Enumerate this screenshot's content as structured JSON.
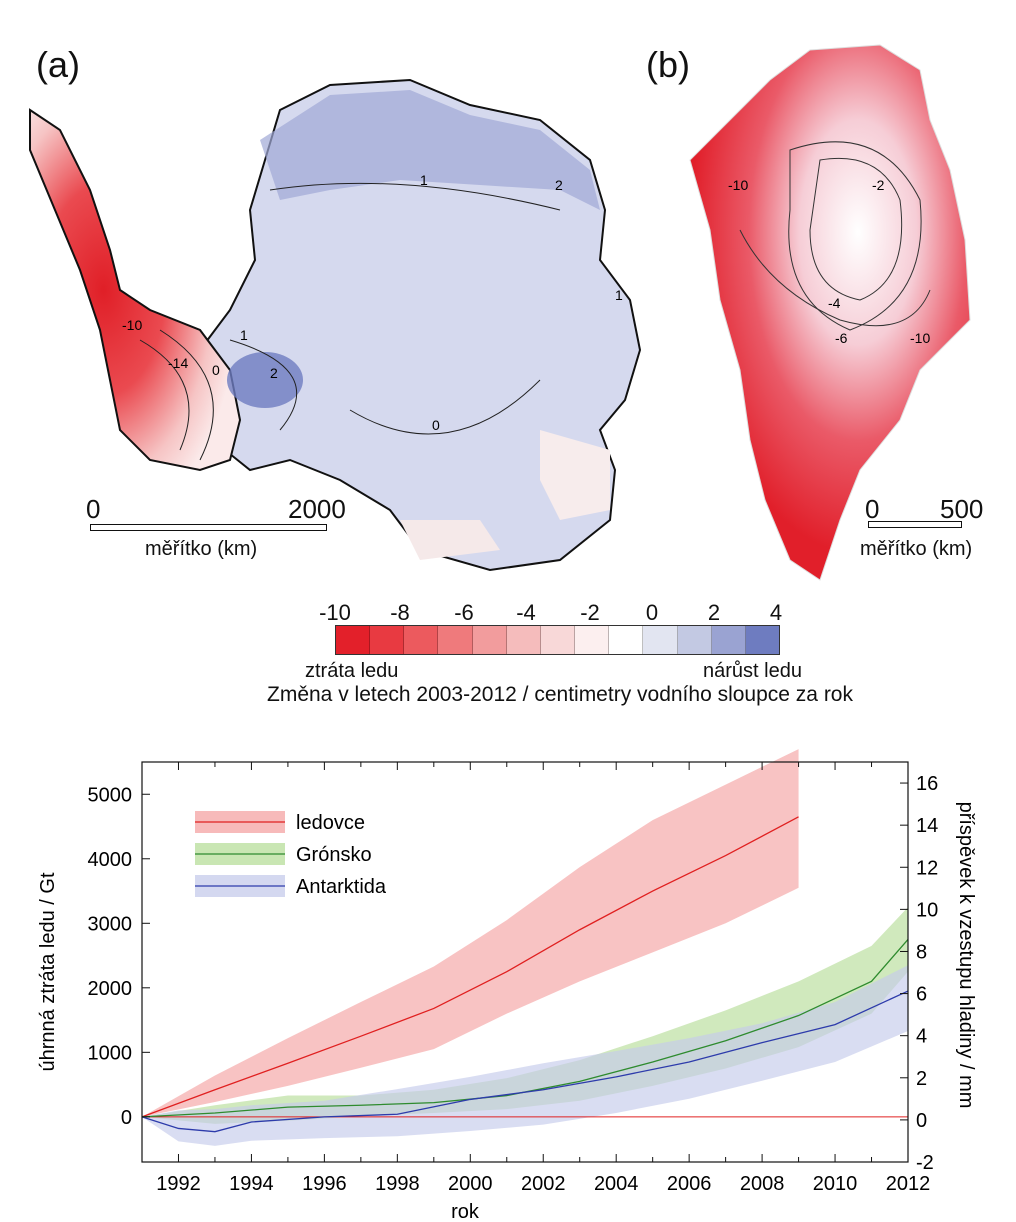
{
  "panels": {
    "a": {
      "label": "(a)",
      "scale": {
        "zero": "0",
        "max": "2000",
        "caption": "měřítko (km)"
      },
      "contour_labels": [
        "1",
        "2",
        "1",
        "-10",
        "-14",
        "0",
        "1",
        "2",
        "0"
      ]
    },
    "b": {
      "label": "(b)",
      "scale": {
        "zero": "0",
        "max": "500",
        "caption": "měřítko (km)"
      },
      "contour_labels": [
        "-10",
        "-2",
        "-4",
        "-6",
        "-10"
      ]
    }
  },
  "colorbar": {
    "ticks": [
      "-10",
      "-8",
      "-6",
      "-4",
      "-2",
      "0",
      "2",
      "4"
    ],
    "left_label": "ztráta ledu",
    "right_label": "nárůst ledu",
    "caption": "Změna v letech 2003-2012 / centimetry vodního sloupce za rok",
    "colors": [
      "#e3202a",
      "#e83a41",
      "#ec5a5e",
      "#ef7a7c",
      "#f29c9d",
      "#f5bcbc",
      "#f8d8d8",
      "#fcefef",
      "#ffffff",
      "#e2e5f1",
      "#c3c9e3",
      "#9aa3d2",
      "#6e7cc0"
    ]
  },
  "chart_data": {
    "type": "line",
    "xlabel": "rok",
    "ylabel": "úhrnná ztráta ledu / Gt",
    "y2label": "příspěvek k vzestupu hladiny / mm",
    "xlim": [
      1991,
      2012
    ],
    "ylim": [
      -700,
      5500
    ],
    "y2lim": [
      -2,
      17
    ],
    "xticks": [
      1992,
      1994,
      1996,
      1998,
      2000,
      2002,
      2004,
      2006,
      2008,
      2010,
      2012
    ],
    "yticks": [
      0,
      1000,
      2000,
      3000,
      4000,
      5000
    ],
    "y2ticks": [
      -2,
      0,
      2,
      4,
      6,
      8,
      10,
      12,
      14,
      16
    ],
    "legend_position": "top-left",
    "series": [
      {
        "name": "ledovce",
        "color": "#e02020",
        "band_color": "#f4a3a3",
        "x": [
          1991,
          1993,
          1995,
          1997,
          1999,
          2001,
          2003,
          2005,
          2007,
          2009
        ],
        "values": [
          0,
          420,
          830,
          1250,
          1680,
          2250,
          2900,
          3500,
          4050,
          4650
        ],
        "upper": [
          0,
          640,
          1220,
          1780,
          2330,
          3050,
          3870,
          4600,
          5150,
          5700
        ],
        "lower": [
          0,
          230,
          480,
          760,
          1050,
          1600,
          2100,
          2550,
          3000,
          3550
        ]
      },
      {
        "name": "Grónsko",
        "color": "#2e8b2e",
        "band_color": "#b7dd9a",
        "x": [
          1991,
          1993,
          1995,
          1997,
          1999,
          2001,
          2003,
          2005,
          2007,
          2009,
          2011,
          2012
        ],
        "values": [
          0,
          60,
          150,
          180,
          220,
          330,
          550,
          850,
          1180,
          1570,
          2100,
          2750
        ],
        "upper": [
          0,
          180,
          330,
          330,
          420,
          600,
          880,
          1250,
          1650,
          2100,
          2650,
          3250
        ],
        "lower": [
          0,
          -110,
          -60,
          10,
          60,
          120,
          250,
          480,
          750,
          1080,
          1600,
          2250
        ]
      },
      {
        "name": "Antarktida",
        "color": "#2d3bab",
        "band_color": "#c5cbeb",
        "x": [
          1991,
          1992,
          1993,
          1994,
          1996,
          1998,
          2000,
          2002,
          2004,
          2006,
          2008,
          2010,
          2012
        ],
        "values": [
          0,
          -180,
          -230,
          -80,
          0,
          40,
          270,
          420,
          620,
          850,
          1150,
          1430,
          1950
        ],
        "upper": [
          0,
          100,
          120,
          180,
          250,
          430,
          620,
          830,
          1020,
          1220,
          1450,
          1780,
          2350
        ],
        "lower": [
          0,
          -380,
          -450,
          -370,
          -330,
          -300,
          -220,
          -120,
          60,
          280,
          560,
          850,
          1330
        ]
      }
    ]
  }
}
